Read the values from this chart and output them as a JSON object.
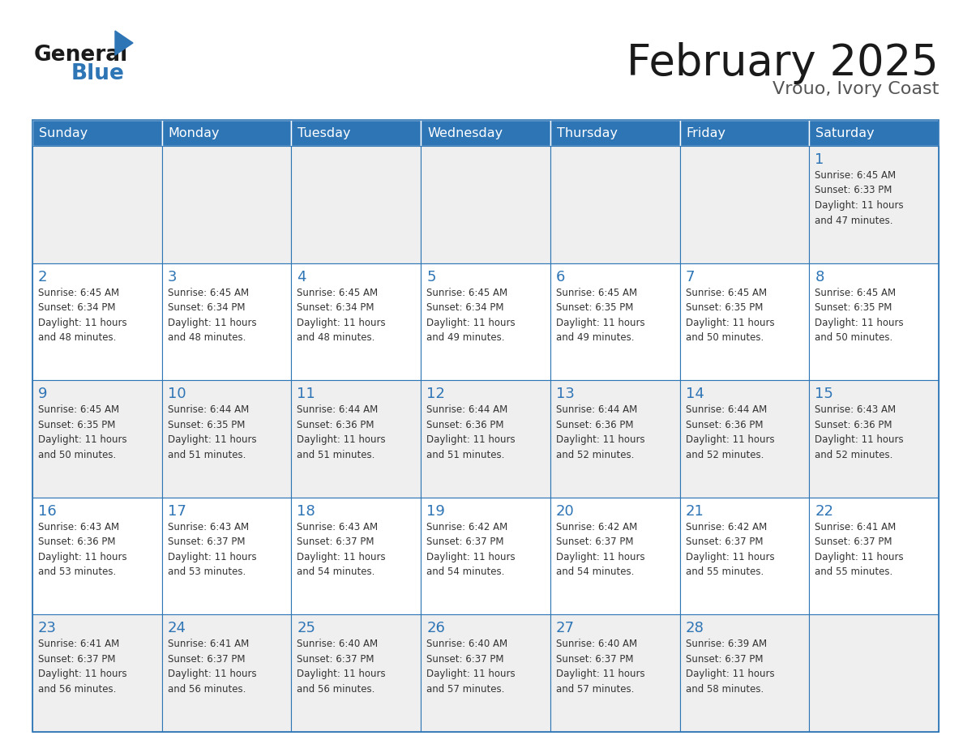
{
  "title": "February 2025",
  "subtitle": "Vrouo, Ivory Coast",
  "header_bg": "#2E75B6",
  "header_text_color": "#FFFFFF",
  "cell_bg_odd": "#EFEFEF",
  "cell_bg_even": "#FFFFFF",
  "border_color": "#2E75B6",
  "day_headers": [
    "Sunday",
    "Monday",
    "Tuesday",
    "Wednesday",
    "Thursday",
    "Friday",
    "Saturday"
  ],
  "title_color": "#1a1a1a",
  "subtitle_color": "#555555",
  "day_num_color": "#2E75B6",
  "info_color": "#333333",
  "logo_black": "#1a1a1a",
  "logo_blue": "#2E75B6",
  "weeks": [
    [
      {
        "day": null,
        "info": ""
      },
      {
        "day": null,
        "info": ""
      },
      {
        "day": null,
        "info": ""
      },
      {
        "day": null,
        "info": ""
      },
      {
        "day": null,
        "info": ""
      },
      {
        "day": null,
        "info": ""
      },
      {
        "day": 1,
        "info": "Sunrise: 6:45 AM\nSunset: 6:33 PM\nDaylight: 11 hours\nand 47 minutes."
      }
    ],
    [
      {
        "day": 2,
        "info": "Sunrise: 6:45 AM\nSunset: 6:34 PM\nDaylight: 11 hours\nand 48 minutes."
      },
      {
        "day": 3,
        "info": "Sunrise: 6:45 AM\nSunset: 6:34 PM\nDaylight: 11 hours\nand 48 minutes."
      },
      {
        "day": 4,
        "info": "Sunrise: 6:45 AM\nSunset: 6:34 PM\nDaylight: 11 hours\nand 48 minutes."
      },
      {
        "day": 5,
        "info": "Sunrise: 6:45 AM\nSunset: 6:34 PM\nDaylight: 11 hours\nand 49 minutes."
      },
      {
        "day": 6,
        "info": "Sunrise: 6:45 AM\nSunset: 6:35 PM\nDaylight: 11 hours\nand 49 minutes."
      },
      {
        "day": 7,
        "info": "Sunrise: 6:45 AM\nSunset: 6:35 PM\nDaylight: 11 hours\nand 50 minutes."
      },
      {
        "day": 8,
        "info": "Sunrise: 6:45 AM\nSunset: 6:35 PM\nDaylight: 11 hours\nand 50 minutes."
      }
    ],
    [
      {
        "day": 9,
        "info": "Sunrise: 6:45 AM\nSunset: 6:35 PM\nDaylight: 11 hours\nand 50 minutes."
      },
      {
        "day": 10,
        "info": "Sunrise: 6:44 AM\nSunset: 6:35 PM\nDaylight: 11 hours\nand 51 minutes."
      },
      {
        "day": 11,
        "info": "Sunrise: 6:44 AM\nSunset: 6:36 PM\nDaylight: 11 hours\nand 51 minutes."
      },
      {
        "day": 12,
        "info": "Sunrise: 6:44 AM\nSunset: 6:36 PM\nDaylight: 11 hours\nand 51 minutes."
      },
      {
        "day": 13,
        "info": "Sunrise: 6:44 AM\nSunset: 6:36 PM\nDaylight: 11 hours\nand 52 minutes."
      },
      {
        "day": 14,
        "info": "Sunrise: 6:44 AM\nSunset: 6:36 PM\nDaylight: 11 hours\nand 52 minutes."
      },
      {
        "day": 15,
        "info": "Sunrise: 6:43 AM\nSunset: 6:36 PM\nDaylight: 11 hours\nand 52 minutes."
      }
    ],
    [
      {
        "day": 16,
        "info": "Sunrise: 6:43 AM\nSunset: 6:36 PM\nDaylight: 11 hours\nand 53 minutes."
      },
      {
        "day": 17,
        "info": "Sunrise: 6:43 AM\nSunset: 6:37 PM\nDaylight: 11 hours\nand 53 minutes."
      },
      {
        "day": 18,
        "info": "Sunrise: 6:43 AM\nSunset: 6:37 PM\nDaylight: 11 hours\nand 54 minutes."
      },
      {
        "day": 19,
        "info": "Sunrise: 6:42 AM\nSunset: 6:37 PM\nDaylight: 11 hours\nand 54 minutes."
      },
      {
        "day": 20,
        "info": "Sunrise: 6:42 AM\nSunset: 6:37 PM\nDaylight: 11 hours\nand 54 minutes."
      },
      {
        "day": 21,
        "info": "Sunrise: 6:42 AM\nSunset: 6:37 PM\nDaylight: 11 hours\nand 55 minutes."
      },
      {
        "day": 22,
        "info": "Sunrise: 6:41 AM\nSunset: 6:37 PM\nDaylight: 11 hours\nand 55 minutes."
      }
    ],
    [
      {
        "day": 23,
        "info": "Sunrise: 6:41 AM\nSunset: 6:37 PM\nDaylight: 11 hours\nand 56 minutes."
      },
      {
        "day": 24,
        "info": "Sunrise: 6:41 AM\nSunset: 6:37 PM\nDaylight: 11 hours\nand 56 minutes."
      },
      {
        "day": 25,
        "info": "Sunrise: 6:40 AM\nSunset: 6:37 PM\nDaylight: 11 hours\nand 56 minutes."
      },
      {
        "day": 26,
        "info": "Sunrise: 6:40 AM\nSunset: 6:37 PM\nDaylight: 11 hours\nand 57 minutes."
      },
      {
        "day": 27,
        "info": "Sunrise: 6:40 AM\nSunset: 6:37 PM\nDaylight: 11 hours\nand 57 minutes."
      },
      {
        "day": 28,
        "info": "Sunrise: 6:39 AM\nSunset: 6:37 PM\nDaylight: 11 hours\nand 58 minutes."
      },
      {
        "day": null,
        "info": ""
      }
    ]
  ]
}
